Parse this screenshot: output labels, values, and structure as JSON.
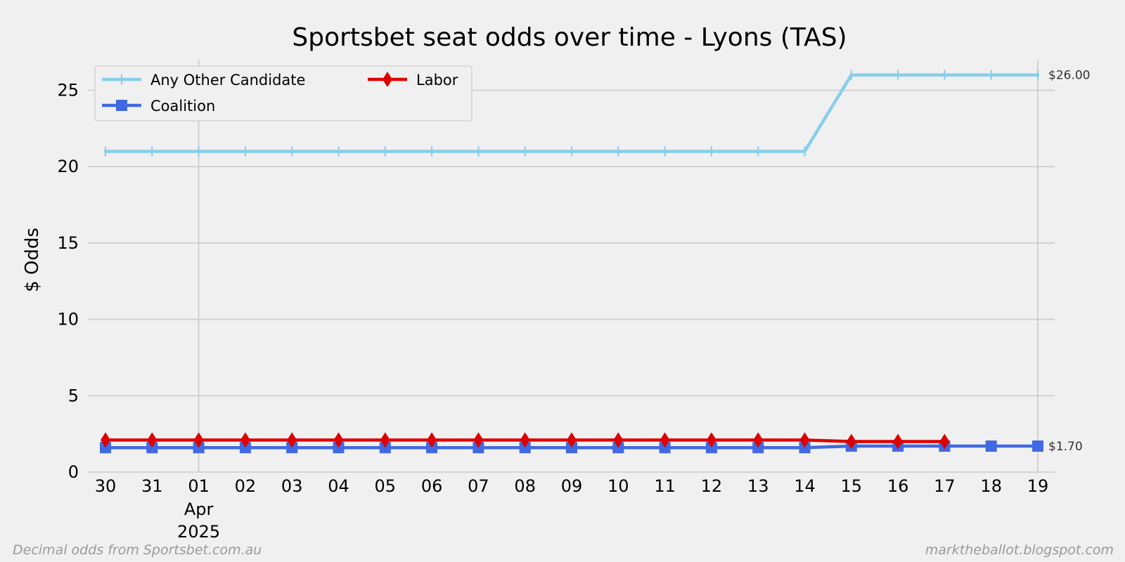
{
  "chart_data": {
    "type": "line",
    "title": "Sportsbet seat odds over time - Lyons (TAS)",
    "xlabel": "",
    "ylabel": "$ Odds",
    "ylim": [
      0,
      27
    ],
    "yticks": [
      0,
      5,
      10,
      15,
      20,
      25
    ],
    "x": [
      "2025-03-30",
      "2025-03-31",
      "2025-04-01",
      "2025-04-02",
      "2025-04-03",
      "2025-04-04",
      "2025-04-05",
      "2025-04-06",
      "2025-04-07",
      "2025-04-08",
      "2025-04-09",
      "2025-04-10",
      "2025-04-11",
      "2025-04-12",
      "2025-04-13",
      "2025-04-14",
      "2025-04-15",
      "2025-04-16",
      "2025-04-17",
      "2025-04-18",
      "2025-04-19"
    ],
    "xtick_labels": [
      "30",
      "31",
      "01",
      "02",
      "03",
      "04",
      "05",
      "06",
      "07",
      "08",
      "09",
      "10",
      "11",
      "12",
      "13",
      "14",
      "15",
      "16",
      "17",
      "18",
      "19"
    ],
    "xtick_sublabel": {
      "month": "Apr",
      "year": "2025"
    },
    "grid": true,
    "legend_placement": "top-left",
    "series": [
      {
        "name": "Any Other Candidate",
        "color": "#87ceeb",
        "marker": "plus",
        "values": [
          21,
          21,
          21,
          21,
          21,
          21,
          21,
          21,
          21,
          21,
          21,
          21,
          21,
          21,
          21,
          21,
          26,
          26,
          26,
          26,
          26
        ]
      },
      {
        "name": "Coalition",
        "color": "#4169e1",
        "marker": "square",
        "values": [
          1.6,
          1.6,
          1.6,
          1.6,
          1.6,
          1.6,
          1.6,
          1.6,
          1.6,
          1.6,
          1.6,
          1.6,
          1.6,
          1.6,
          1.6,
          1.6,
          1.7,
          1.7,
          1.7,
          1.7,
          1.7
        ]
      },
      {
        "name": "Labor",
        "color": "#dd0000",
        "marker": "diamond",
        "values": [
          2.1,
          2.1,
          2.1,
          2.1,
          2.1,
          2.1,
          2.1,
          2.1,
          2.1,
          2.1,
          2.1,
          2.1,
          2.1,
          2.1,
          2.1,
          2.1,
          2.0,
          2.0,
          2.0,
          null,
          null
        ]
      }
    ],
    "end_labels": [
      "$26.00",
      "$1.70"
    ]
  },
  "footer": {
    "left": "Decimal odds from Sportsbet.com.au",
    "right": "marktheballot.blogspot.com"
  }
}
